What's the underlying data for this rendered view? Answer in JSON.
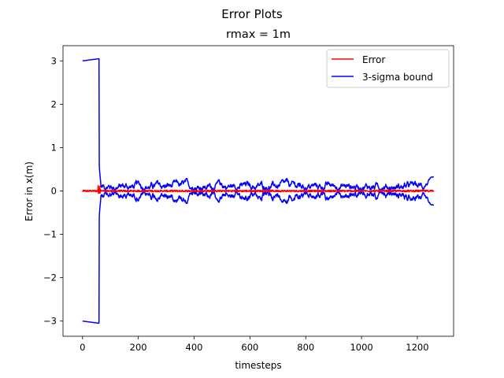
{
  "chart_data": {
    "type": "line",
    "suptitle": "Error Plots",
    "title": "rmax = 1m",
    "xlabel": "timesteps",
    "ylabel": "Error in x(m)",
    "xlim": [
      -70,
      1330
    ],
    "ylim": [
      -3.35,
      3.35
    ],
    "xticks": [
      0,
      200,
      400,
      600,
      800,
      1000,
      1200
    ],
    "yticks": [
      -3,
      -2,
      -1,
      0,
      1,
      2,
      3
    ],
    "ytick_labels": [
      "−3",
      "−2",
      "−1",
      "0",
      "1",
      "2",
      "3"
    ],
    "grid": false,
    "legend_position": "upper right",
    "n_points": 1260,
    "series": [
      {
        "name": "Error",
        "color": "#ff0000",
        "kind": "error",
        "x_range": [
          0,
          1259
        ],
        "values_note": "noisy error centered at 0, amplitude about 0.02 (spike ~0.1 near step 60)"
      },
      {
        "name": "3-sigma bound",
        "color": "#0000ff",
        "kind": "bound",
        "x_range": [
          0,
          1259
        ],
        "initial_bound": [
          3.0,
          3.05
        ],
        "transition_step": 60,
        "steady_bound_range": [
          0.02,
          0.3
        ],
        "final_bound": 0.33
      }
    ]
  }
}
